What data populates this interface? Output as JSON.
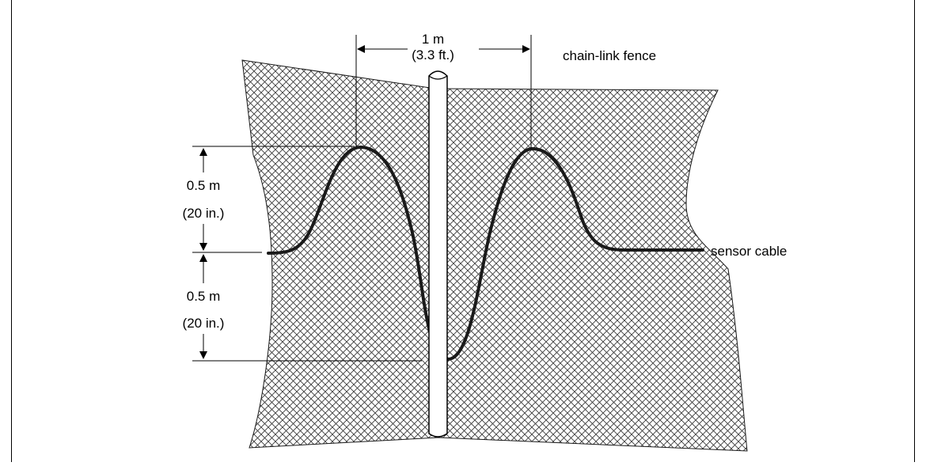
{
  "labels": {
    "span_m": "1 m",
    "span_ft": "(3.3 ft.)",
    "fence": "chain-link fence",
    "upper_height_m": "0.5 m",
    "upper_height_in": "(20 in.)",
    "lower_height_m": "0.5 m",
    "lower_height_in": "(20 in.)",
    "cable": "sensor cable"
  },
  "colors": {
    "mesh": "#3a3a3a",
    "line": "#000000",
    "background": "#ffffff"
  }
}
